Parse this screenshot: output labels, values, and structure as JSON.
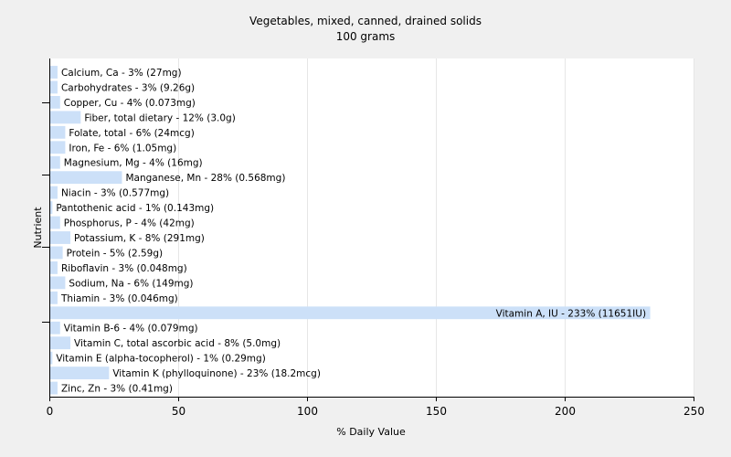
{
  "chart_data": {
    "type": "bar",
    "orientation": "horizontal",
    "title": "Vegetables, mixed, canned, drained solids",
    "subtitle": "100 grams",
    "xlabel": "% Daily Value",
    "ylabel": "Nutrient",
    "xlim": [
      0,
      250
    ],
    "x_ticks": [
      "0",
      "50",
      "100",
      "150",
      "200",
      "250"
    ],
    "grid": true,
    "bar_color": "#cce0f8",
    "categories": [
      "Calcium, Ca",
      "Carbohydrates",
      "Copper, Cu",
      "Fiber, total dietary",
      "Folate, total",
      "Iron, Fe",
      "Magnesium, Mg",
      "Manganese, Mn",
      "Niacin",
      "Pantothenic acid",
      "Phosphorus, P",
      "Potassium, K",
      "Protein",
      "Riboflavin",
      "Sodium, Na",
      "Thiamin",
      "Vitamin A, IU",
      "Vitamin B-6",
      "Vitamin C, total ascorbic acid",
      "Vitamin E (alpha-tocopherol)",
      "Vitamin K (phylloquinone)",
      "Zinc, Zn"
    ],
    "values": [
      3,
      3,
      4,
      12,
      6,
      6,
      4,
      28,
      3,
      1,
      4,
      8,
      5,
      3,
      6,
      3,
      233,
      4,
      8,
      1,
      23,
      3
    ],
    "labels": [
      "Calcium, Ca - 3% (27mg)",
      "Carbohydrates - 3% (9.26g)",
      "Copper, Cu - 4% (0.073mg)",
      "Fiber, total dietary - 12% (3.0g)",
      "Folate, total - 6% (24mcg)",
      "Iron, Fe - 6% (1.05mg)",
      "Magnesium, Mg - 4% (16mg)",
      "Manganese, Mn - 28% (0.568mg)",
      "Niacin - 3% (0.577mg)",
      "Pantothenic acid - 1% (0.143mg)",
      "Phosphorus, P - 4% (42mg)",
      "Potassium, K - 8% (291mg)",
      "Protein - 5% (2.59g)",
      "Riboflavin - 3% (0.048mg)",
      "Sodium, Na - 6% (149mg)",
      "Thiamin - 3% (0.046mg)",
      "Vitamin A, IU - 233% (11651IU)",
      "Vitamin B-6 - 4% (0.079mg)",
      "Vitamin C, total ascorbic acid - 8% (5.0mg)",
      "Vitamin E (alpha-tocopherol) - 1% (0.29mg)",
      "Vitamin K (phylloquinone) - 23% (18.2mcg)",
      "Zinc, Zn - 3% (0.41mg)"
    ]
  }
}
